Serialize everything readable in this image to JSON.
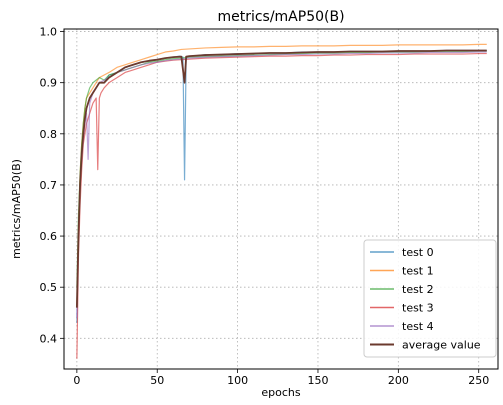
{
  "chart_data": {
    "type": "line",
    "title": "metrics/mAP50(B)",
    "xlabel": "epochs",
    "ylabel": "metrics/mAP50(B)",
    "xlim": [
      -8,
      262
    ],
    "ylim": [
      0.34,
      1.005
    ],
    "xticks": [
      0,
      50,
      100,
      150,
      200,
      250
    ],
    "yticks": [
      0.4,
      0.5,
      0.6,
      0.7,
      0.8,
      0.9,
      1.0
    ],
    "grid": true,
    "legend_position": "lower-right",
    "series": [
      {
        "name": "test 0",
        "color": "#1f77b4",
        "x": [
          0,
          1,
          2,
          3,
          4,
          5,
          6,
          8,
          10,
          12,
          14,
          17,
          20,
          25,
          30,
          35,
          40,
          45,
          50,
          55,
          60,
          64,
          66,
          67,
          68,
          70,
          75,
          80,
          90,
          100,
          110,
          120,
          130,
          140,
          150,
          160,
          170,
          180,
          190,
          200,
          210,
          220,
          230,
          240,
          250,
          255
        ],
        "y": [
          0.43,
          0.6,
          0.7,
          0.76,
          0.8,
          0.83,
          0.85,
          0.87,
          0.88,
          0.89,
          0.9,
          0.9,
          0.915,
          0.92,
          0.93,
          0.935,
          0.94,
          0.942,
          0.945,
          0.948,
          0.95,
          0.952,
          0.95,
          0.71,
          0.95,
          0.952,
          0.953,
          0.955,
          0.955,
          0.957,
          0.957,
          0.958,
          0.958,
          0.96,
          0.96,
          0.96,
          0.961,
          0.961,
          0.961,
          0.962,
          0.962,
          0.962,
          0.963,
          0.963,
          0.963,
          0.963
        ]
      },
      {
        "name": "test 1",
        "color": "#ff7f0e",
        "x": [
          0,
          1,
          2,
          3,
          4,
          5,
          6,
          8,
          10,
          12,
          14,
          17,
          20,
          25,
          30,
          35,
          40,
          45,
          50,
          55,
          60,
          65,
          70,
          80,
          90,
          100,
          110,
          120,
          130,
          140,
          150,
          160,
          170,
          180,
          190,
          200,
          210,
          220,
          230,
          240,
          250,
          255
        ],
        "y": [
          0.46,
          0.62,
          0.72,
          0.78,
          0.82,
          0.85,
          0.87,
          0.88,
          0.89,
          0.9,
          0.91,
          0.915,
          0.92,
          0.93,
          0.935,
          0.94,
          0.945,
          0.95,
          0.955,
          0.96,
          0.962,
          0.965,
          0.966,
          0.968,
          0.969,
          0.97,
          0.97,
          0.971,
          0.971,
          0.972,
          0.972,
          0.972,
          0.973,
          0.973,
          0.973,
          0.974,
          0.974,
          0.974,
          0.974,
          0.974,
          0.975,
          0.975
        ]
      },
      {
        "name": "test 2",
        "color": "#2ca02c",
        "x": [
          0,
          1,
          2,
          3,
          4,
          5,
          6,
          8,
          10,
          12,
          14,
          17,
          20,
          25,
          30,
          35,
          40,
          45,
          50,
          55,
          60,
          65,
          70,
          80,
          90,
          100,
          110,
          120,
          130,
          140,
          150,
          160,
          170,
          180,
          190,
          200,
          210,
          220,
          230,
          240,
          250,
          255
        ],
        "y": [
          0.5,
          0.64,
          0.72,
          0.78,
          0.82,
          0.85,
          0.87,
          0.89,
          0.9,
          0.905,
          0.91,
          0.905,
          0.915,
          0.92,
          0.925,
          0.93,
          0.935,
          0.94,
          0.942,
          0.945,
          0.947,
          0.948,
          0.95,
          0.951,
          0.952,
          0.953,
          0.954,
          0.955,
          0.956,
          0.957,
          0.958,
          0.958,
          0.959,
          0.959,
          0.96,
          0.96,
          0.96,
          0.961,
          0.961,
          0.961,
          0.962,
          0.962
        ]
      },
      {
        "name": "test 3",
        "color": "#d62728",
        "x": [
          0,
          1,
          2,
          3,
          4,
          5,
          6,
          8,
          10,
          12,
          13,
          14,
          15,
          17,
          20,
          25,
          30,
          35,
          40,
          45,
          50,
          55,
          60,
          65,
          70,
          80,
          90,
          100,
          110,
          120,
          130,
          140,
          150,
          160,
          170,
          180,
          190,
          200,
          210,
          220,
          230,
          240,
          250,
          255
        ],
        "y": [
          0.36,
          0.56,
          0.66,
          0.73,
          0.78,
          0.8,
          0.82,
          0.84,
          0.86,
          0.87,
          0.73,
          0.87,
          0.88,
          0.89,
          0.9,
          0.91,
          0.92,
          0.925,
          0.93,
          0.935,
          0.94,
          0.942,
          0.944,
          0.945,
          0.946,
          0.948,
          0.949,
          0.95,
          0.951,
          0.952,
          0.952,
          0.953,
          0.953,
          0.954,
          0.954,
          0.955,
          0.955,
          0.955,
          0.956,
          0.956,
          0.956,
          0.956,
          0.957,
          0.957
        ]
      },
      {
        "name": "test 4",
        "color": "#9467bd",
        "x": [
          0,
          1,
          2,
          3,
          4,
          5,
          6,
          7,
          8,
          9,
          10,
          12,
          14,
          17,
          20,
          25,
          30,
          35,
          40,
          45,
          50,
          55,
          60,
          65,
          70,
          80,
          90,
          100,
          110,
          120,
          130,
          140,
          150,
          160,
          170,
          180,
          190,
          200,
          210,
          220,
          230,
          240,
          250,
          255
        ],
        "y": [
          0.44,
          0.6,
          0.7,
          0.75,
          0.79,
          0.82,
          0.84,
          0.75,
          0.86,
          0.87,
          0.88,
          0.89,
          0.9,
          0.905,
          0.91,
          0.92,
          0.925,
          0.93,
          0.935,
          0.938,
          0.94,
          0.943,
          0.945,
          0.946,
          0.948,
          0.95,
          0.951,
          0.952,
          0.953,
          0.954,
          0.955,
          0.955,
          0.956,
          0.956,
          0.957,
          0.957,
          0.958,
          0.958,
          0.958,
          0.959,
          0.959,
          0.959,
          0.96,
          0.96
        ]
      },
      {
        "name": "average value",
        "color": "#6b3a2e",
        "x": [
          0,
          1,
          2,
          3,
          4,
          5,
          6,
          8,
          10,
          12,
          14,
          17,
          20,
          25,
          30,
          35,
          40,
          45,
          50,
          55,
          60,
          65,
          67,
          68,
          70,
          80,
          90,
          100,
          110,
          120,
          130,
          140,
          150,
          160,
          170,
          180,
          190,
          200,
          210,
          220,
          230,
          240,
          250,
          255
        ],
        "y": [
          0.46,
          0.6,
          0.7,
          0.76,
          0.8,
          0.83,
          0.85,
          0.87,
          0.88,
          0.89,
          0.9,
          0.9,
          0.91,
          0.92,
          0.93,
          0.935,
          0.94,
          0.943,
          0.945,
          0.948,
          0.95,
          0.951,
          0.9,
          0.951,
          0.952,
          0.954,
          0.955,
          0.956,
          0.957,
          0.958,
          0.958,
          0.959,
          0.96,
          0.96,
          0.961,
          0.961,
          0.961,
          0.962,
          0.962,
          0.962,
          0.963,
          0.963,
          0.963,
          0.963
        ]
      }
    ]
  }
}
